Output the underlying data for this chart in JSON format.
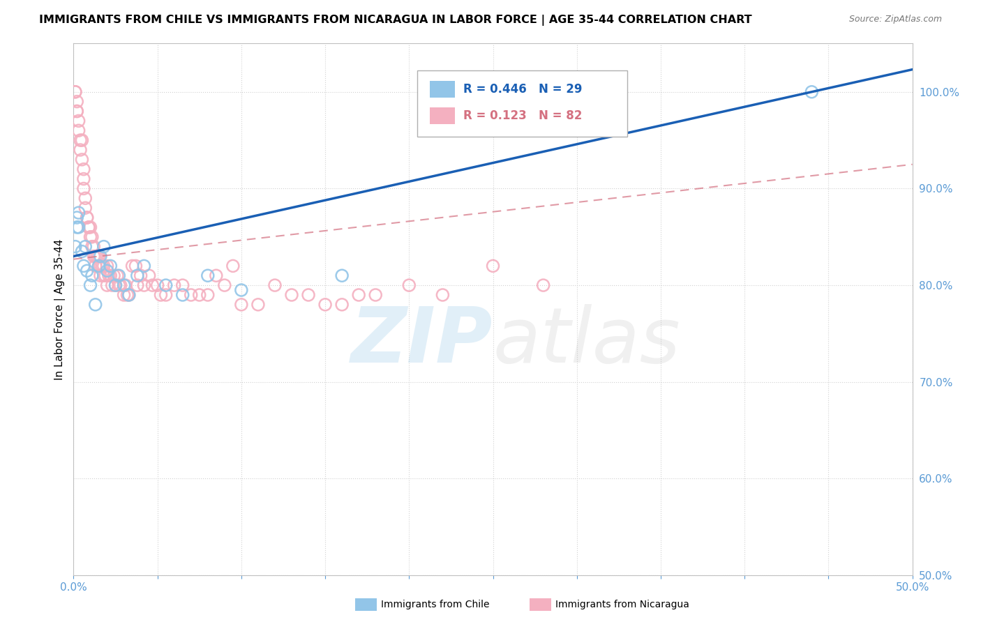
{
  "title": "IMMIGRANTS FROM CHILE VS IMMIGRANTS FROM NICARAGUA IN LABOR FORCE | AGE 35-44 CORRELATION CHART",
  "source": "Source: ZipAtlas.com",
  "ylabel": "In Labor Force | Age 35-44",
  "xlim": [
    0.0,
    0.5
  ],
  "ylim": [
    0.5,
    1.05
  ],
  "chile_color": "#92c5e8",
  "nicaragua_color": "#f4b0c0",
  "chile_line_color": "#1a5fb4",
  "nicaragua_line_color": "#d47080",
  "R_chile": 0.446,
  "N_chile": 29,
  "R_nicaragua": 0.123,
  "N_nicaragua": 82,
  "tick_color": "#5b9bd5",
  "chile_x": [
    0.001,
    0.002,
    0.002,
    0.003,
    0.003,
    0.005,
    0.006,
    0.007,
    0.008,
    0.01,
    0.011,
    0.013,
    0.015,
    0.016,
    0.018,
    0.02,
    0.022,
    0.025,
    0.027,
    0.03,
    0.033,
    0.038,
    0.042,
    0.055,
    0.065,
    0.08,
    0.1,
    0.16,
    0.44
  ],
  "chile_y": [
    0.84,
    0.86,
    0.87,
    0.875,
    0.86,
    0.835,
    0.82,
    0.84,
    0.815,
    0.8,
    0.81,
    0.78,
    0.82,
    0.83,
    0.84,
    0.815,
    0.82,
    0.8,
    0.81,
    0.8,
    0.79,
    0.81,
    0.82,
    0.8,
    0.79,
    0.81,
    0.795,
    0.81,
    1.0
  ],
  "nicaragua_x": [
    0.001,
    0.001,
    0.002,
    0.002,
    0.002,
    0.003,
    0.003,
    0.004,
    0.004,
    0.005,
    0.005,
    0.006,
    0.006,
    0.006,
    0.007,
    0.007,
    0.008,
    0.008,
    0.009,
    0.009,
    0.01,
    0.01,
    0.011,
    0.011,
    0.012,
    0.012,
    0.013,
    0.013,
    0.014,
    0.015,
    0.015,
    0.016,
    0.016,
    0.017,
    0.018,
    0.018,
    0.019,
    0.02,
    0.02,
    0.021,
    0.022,
    0.023,
    0.024,
    0.025,
    0.026,
    0.027,
    0.028,
    0.03,
    0.031,
    0.032,
    0.033,
    0.035,
    0.037,
    0.038,
    0.04,
    0.042,
    0.045,
    0.047,
    0.05,
    0.052,
    0.055,
    0.06,
    0.065,
    0.07,
    0.075,
    0.08,
    0.085,
    0.09,
    0.095,
    0.1,
    0.11,
    0.12,
    0.13,
    0.14,
    0.15,
    0.16,
    0.17,
    0.18,
    0.2,
    0.22,
    0.25,
    0.28
  ],
  "nicaragua_y": [
    1.0,
    1.0,
    0.99,
    0.98,
    0.98,
    0.97,
    0.96,
    0.95,
    0.94,
    0.95,
    0.93,
    0.91,
    0.92,
    0.9,
    0.89,
    0.88,
    0.87,
    0.87,
    0.86,
    0.86,
    0.85,
    0.86,
    0.85,
    0.84,
    0.83,
    0.84,
    0.83,
    0.82,
    0.83,
    0.82,
    0.83,
    0.81,
    0.82,
    0.82,
    0.81,
    0.82,
    0.81,
    0.82,
    0.8,
    0.81,
    0.81,
    0.8,
    0.81,
    0.8,
    0.81,
    0.8,
    0.8,
    0.79,
    0.8,
    0.79,
    0.79,
    0.82,
    0.82,
    0.8,
    0.81,
    0.8,
    0.81,
    0.8,
    0.8,
    0.79,
    0.79,
    0.8,
    0.8,
    0.79,
    0.79,
    0.79,
    0.81,
    0.8,
    0.82,
    0.78,
    0.78,
    0.8,
    0.79,
    0.79,
    0.78,
    0.78,
    0.79,
    0.79,
    0.8,
    0.79,
    0.82,
    0.8
  ]
}
